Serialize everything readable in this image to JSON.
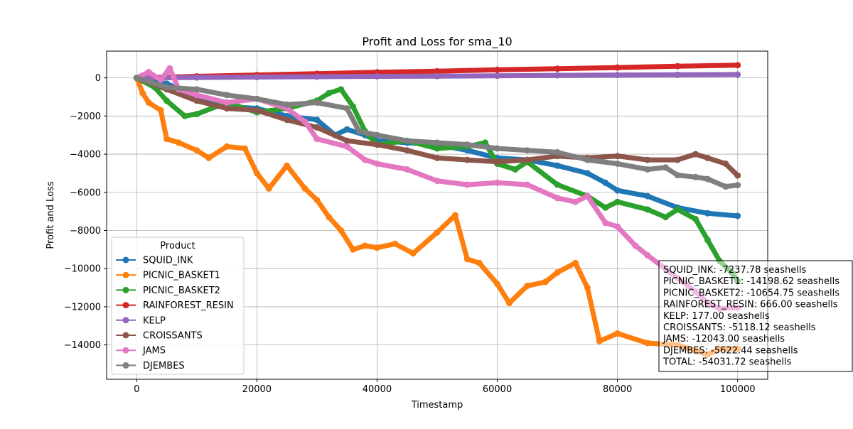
{
  "chart_data": {
    "type": "line",
    "title": "Profit and Loss for sma_10",
    "xlabel": "Timestamp",
    "ylabel": "Profit and Loss",
    "xlim": [
      -5000,
      105000
    ],
    "ylim": [
      -15800,
      1400
    ],
    "xticks": [
      0,
      20000,
      40000,
      60000,
      80000,
      100000
    ],
    "yticks": [
      0,
      -2000,
      -4000,
      -6000,
      -8000,
      -10000,
      -12000,
      -14000
    ],
    "xtick_labels": [
      "0",
      "20000",
      "40000",
      "60000",
      "80000",
      "100000"
    ],
    "ytick_labels": [
      "0",
      "−2000",
      "−4000",
      "−6000",
      "−8000",
      "−10000",
      "−12000",
      "−14000"
    ],
    "grid": true,
    "legend": {
      "title": "Product",
      "placement": "lower-left"
    },
    "series": [
      {
        "name": "SQUID_INK",
        "color": "#1f77b4",
        "x": [
          0,
          5000,
          10000,
          15000,
          20000,
          25000,
          30000,
          33000,
          35000,
          38000,
          40000,
          45000,
          50000,
          55000,
          60000,
          65000,
          70000,
          75000,
          78000,
          80000,
          85000,
          90000,
          95000,
          100000
        ],
        "y": [
          0,
          -300,
          -1000,
          -1500,
          -1600,
          -2000,
          -2200,
          -3000,
          -2700,
          -3000,
          -3300,
          -3400,
          -3500,
          -3800,
          -4200,
          -4300,
          -4600,
          -5000,
          -5500,
          -5900,
          -6200,
          -6800,
          -7100,
          -7237.78
        ]
      },
      {
        "name": "PICNIC_BASKET1",
        "color": "#ff7f0e",
        "x": [
          0,
          1000,
          2000,
          4000,
          5000,
          7000,
          10000,
          12000,
          15000,
          18000,
          20000,
          22000,
          25000,
          28000,
          30000,
          32000,
          34000,
          36000,
          38000,
          40000,
          43000,
          46000,
          50000,
          53000,
          55000,
          57000,
          60000,
          62000,
          65000,
          68000,
          70000,
          73000,
          75000,
          77000,
          80000,
          85000,
          90000,
          93000,
          95000,
          97000,
          100000
        ],
        "y": [
          0,
          -800,
          -1300,
          -1700,
          -3200,
          -3400,
          -3800,
          -4200,
          -3600,
          -3700,
          -5000,
          -5800,
          -4600,
          -5800,
          -6400,
          -7300,
          -8000,
          -9000,
          -8800,
          -8900,
          -8700,
          -9200,
          -8100,
          -7200,
          -9500,
          -9700,
          -10800,
          -11800,
          -10900,
          -10700,
          -10200,
          -9700,
          -11000,
          -13800,
          -13400,
          -13900,
          -14000,
          -14300,
          -14500,
          -14200,
          -14198.62
        ]
      },
      {
        "name": "PICNIC_BASKET2",
        "color": "#2ca02c",
        "x": [
          0,
          3000,
          5000,
          8000,
          10000,
          15000,
          20000,
          25000,
          30000,
          32000,
          34000,
          36000,
          38000,
          40000,
          45000,
          50000,
          55000,
          58000,
          60000,
          63000,
          65000,
          70000,
          75000,
          78000,
          80000,
          85000,
          88000,
          90000,
          93000,
          95000,
          97000,
          99000,
          100000
        ],
        "y": [
          0,
          -500,
          -1200,
          -2000,
          -1900,
          -1300,
          -1800,
          -1600,
          -1200,
          -800,
          -600,
          -1500,
          -2800,
          -3500,
          -3300,
          -3700,
          -3600,
          -3400,
          -4500,
          -4800,
          -4400,
          -5600,
          -6200,
          -6800,
          -6500,
          -6900,
          -7300,
          -6900,
          -7400,
          -8500,
          -9600,
          -10200,
          -10654.75
        ]
      },
      {
        "name": "RAINFOREST_RESIN",
        "color": "#d62728",
        "x": [
          0,
          10000,
          20000,
          30000,
          40000,
          50000,
          60000,
          70000,
          80000,
          90000,
          100000
        ],
        "y": [
          0,
          80,
          150,
          220,
          290,
          350,
          420,
          480,
          540,
          610,
          666
        ]
      },
      {
        "name": "KELP",
        "color": "#9467bd",
        "x": [
          0,
          10000,
          20000,
          30000,
          40000,
          50000,
          60000,
          70000,
          80000,
          90000,
          100000
        ],
        "y": [
          0,
          20,
          40,
          60,
          80,
          90,
          110,
          130,
          150,
          165,
          177
        ]
      },
      {
        "name": "CROISSANTS",
        "color": "#8c564b",
        "x": [
          0,
          5000,
          10000,
          15000,
          20000,
          25000,
          30000,
          35000,
          40000,
          45000,
          50000,
          55000,
          60000,
          65000,
          70000,
          75000,
          80000,
          85000,
          90000,
          93000,
          95000,
          98000,
          100000
        ],
        "y": [
          0,
          -600,
          -1200,
          -1600,
          -1700,
          -2200,
          -2600,
          -3300,
          -3500,
          -3800,
          -4200,
          -4300,
          -4400,
          -4300,
          -4100,
          -4200,
          -4100,
          -4300,
          -4300,
          -4000,
          -4200,
          -4500,
          -5118.12
        ]
      },
      {
        "name": "JAMS",
        "color": "#e377c2",
        "x": [
          0,
          2000,
          4000,
          5500,
          7000,
          10000,
          15000,
          20000,
          25000,
          28000,
          30000,
          35000,
          38000,
          40000,
          45000,
          50000,
          55000,
          60000,
          65000,
          70000,
          73000,
          75000,
          78000,
          80000,
          83000,
          85000,
          90000,
          93000,
          95000,
          97000,
          100000
        ],
        "y": [
          0,
          300,
          -100,
          500,
          -600,
          -900,
          -1300,
          -1100,
          -1600,
          -2300,
          -3200,
          -3600,
          -4300,
          -4500,
          -4800,
          -5400,
          -5600,
          -5500,
          -5600,
          -6300,
          -6500,
          -6200,
          -7600,
          -7800,
          -8800,
          -9300,
          -10500,
          -11200,
          -11800,
          -12100,
          -12043
        ]
      },
      {
        "name": "DJEMBES",
        "color": "#7f7f7f",
        "x": [
          0,
          5000,
          10000,
          15000,
          20000,
          25000,
          30000,
          35000,
          37000,
          40000,
          45000,
          50000,
          55000,
          60000,
          65000,
          70000,
          75000,
          80000,
          85000,
          88000,
          90000,
          93000,
          95000,
          98000,
          100000
        ],
        "y": [
          0,
          -500,
          -600,
          -900,
          -1100,
          -1400,
          -1300,
          -1600,
          -2800,
          -3000,
          -3300,
          -3400,
          -3500,
          -3700,
          -3800,
          -3900,
          -4300,
          -4500,
          -4800,
          -4700,
          -5100,
          -5200,
          -5300,
          -5700,
          -5622.44
        ]
      }
    ],
    "summary": [
      "SQUID_INK: -7237.78 seashells",
      "PICNIC_BASKET1: -14198.62 seashells",
      "PICNIC_BASKET2: -10654.75 seashells",
      "RAINFOREST_RESIN: 666.00 seashells",
      "KELP: 177.00 seashells",
      "CROISSANTS: -5118.12 seashells",
      "JAMS: -12043.00 seashells",
      "DJEMBES: -5622.44 seashells",
      "TOTAL: -54031.72 seashells"
    ]
  }
}
